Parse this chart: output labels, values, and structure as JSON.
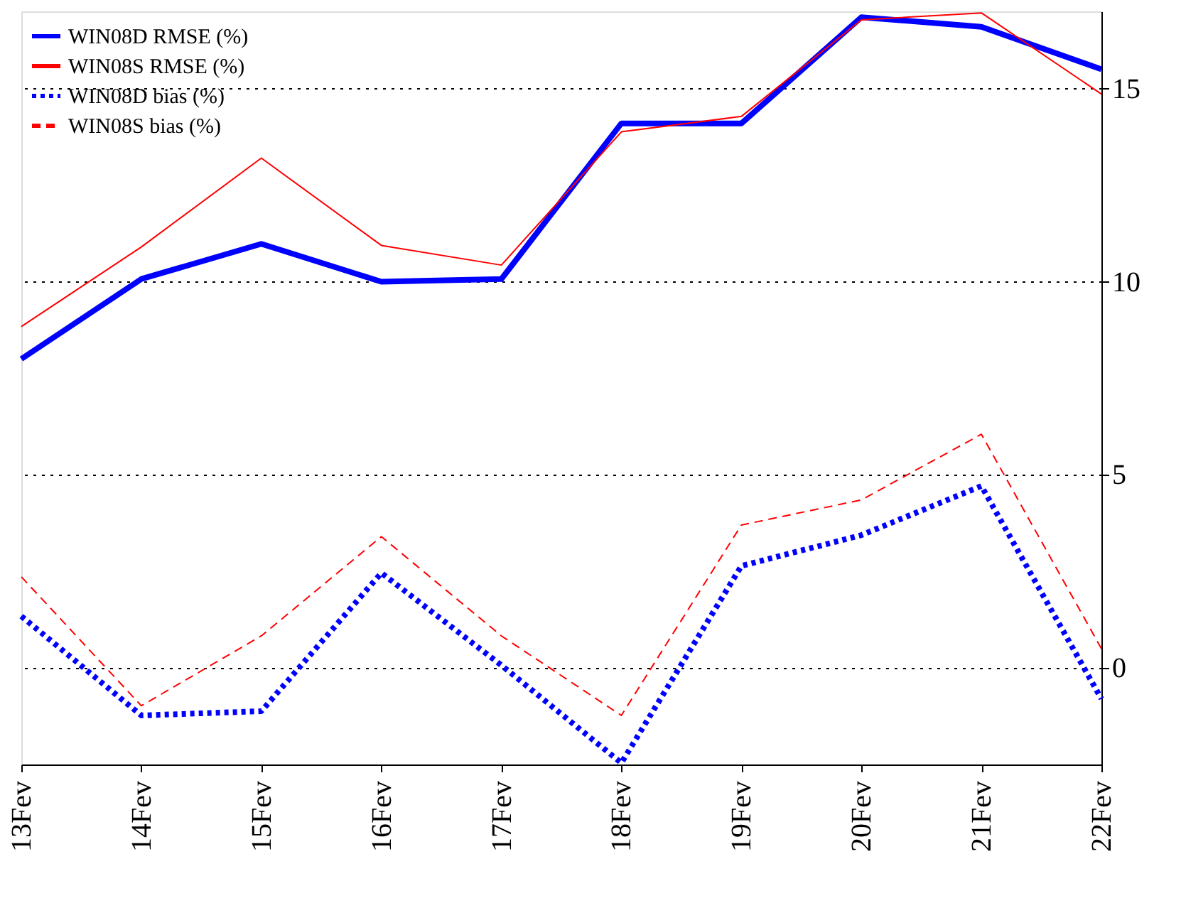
{
  "chart_data": {
    "type": "line",
    "categories": [
      "13Fev",
      "14Fev",
      "15Fev",
      "16Fev",
      "17Fev",
      "18Fev",
      "19Fev",
      "20Fev",
      "21Fev",
      "22Fev"
    ],
    "series": [
      {
        "name": "WIN08D RMSE (%)",
        "color": "#0000ff",
        "line_style": "solid",
        "values": [
          8.0,
          10.07,
          10.98,
          10.0,
          10.07,
          14.1,
          14.1,
          16.85,
          16.6,
          15.5
        ]
      },
      {
        "name": "WIN08S RMSE (%)",
        "color": "#ff0000",
        "line_style": "solid",
        "values": [
          8.84,
          10.9,
          13.2,
          10.94,
          10.43,
          13.88,
          14.28,
          16.78,
          16.96,
          14.86
        ]
      },
      {
        "name": "WIN08D bias (%)",
        "color": "#0000ff",
        "line_style": "dotted",
        "values": [
          1.34,
          -1.23,
          -1.12,
          2.46,
          0.07,
          -2.46,
          2.64,
          3.44,
          4.71,
          -0.8
        ]
      },
      {
        "name": "WIN08S bias (%)",
        "color": "#ff0000",
        "line_style": "dashed",
        "values": [
          2.36,
          -0.98,
          0.83,
          3.4,
          0.83,
          -1.23,
          3.7,
          4.35,
          6.05,
          0.5
        ]
      }
    ],
    "ylim": [
      -2.5,
      17
    ],
    "yticks": [
      0,
      5,
      10,
      15
    ],
    "grid": "y",
    "legend": "top left",
    "marker": "none"
  }
}
